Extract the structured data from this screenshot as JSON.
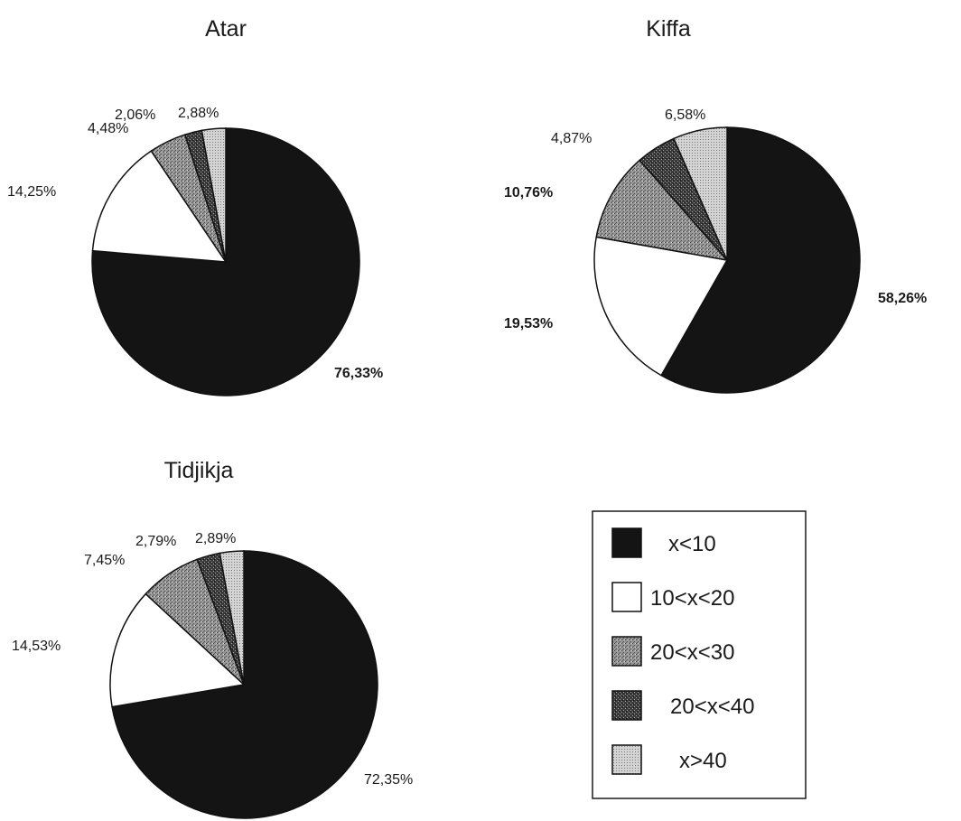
{
  "colors": {
    "x<10": "#141414",
    "10<x<20": "#ffffff",
    "20<x<30": "#8c8c8c",
    "20<x<40": "#4a4a4a",
    "x>40": "#c4c4c4"
  },
  "legend": {
    "placement": "bottom-right",
    "items": [
      {
        "label": "x<10",
        "pattern": "solid-black"
      },
      {
        "label": "10<x<20",
        "pattern": "white"
      },
      {
        "label": "20<x<30",
        "pattern": "medium-stipple"
      },
      {
        "label": "20<x<40",
        "pattern": "dark-crosshatch"
      },
      {
        "label": "x>40",
        "pattern": "light-dots"
      }
    ]
  },
  "chart_data": [
    {
      "type": "pie",
      "title": "Atar",
      "slices": [
        {
          "category": "x<10",
          "value": 76.33,
          "label": "76,33%"
        },
        {
          "category": "10<x<20",
          "value": 14.25,
          "label": "14,25%"
        },
        {
          "category": "20<x<30",
          "value": 4.48,
          "label": "4,48%"
        },
        {
          "category": "20<x<40",
          "value": 2.06,
          "label": "2,06%"
        },
        {
          "category": "x>40",
          "value": 2.88,
          "label": "2,88%"
        }
      ]
    },
    {
      "type": "pie",
      "title": "Kiffa",
      "slices": [
        {
          "category": "x<10",
          "value": 58.26,
          "label": "58,26%"
        },
        {
          "category": "10<x<20",
          "value": 19.53,
          "label": "19,53%"
        },
        {
          "category": "20<x<30",
          "value": 10.76,
          "label": "10,76%"
        },
        {
          "category": "20<x<40",
          "value": 4.87,
          "label": "4,87%"
        },
        {
          "category": "x>40",
          "value": 6.58,
          "label": "6,58%"
        }
      ]
    },
    {
      "type": "pie",
      "title": "Tidjikja",
      "slices": [
        {
          "category": "x<10",
          "value": 72.35,
          "label": "72,35%"
        },
        {
          "category": "10<x<20",
          "value": 14.53,
          "label": "14,53%"
        },
        {
          "category": "20<x<30",
          "value": 7.45,
          "label": "7,45%"
        },
        {
          "category": "20<x<40",
          "value": 2.79,
          "label": "2,79%"
        },
        {
          "category": "x>40",
          "value": 2.89,
          "label": "2,89%"
        }
      ]
    }
  ]
}
